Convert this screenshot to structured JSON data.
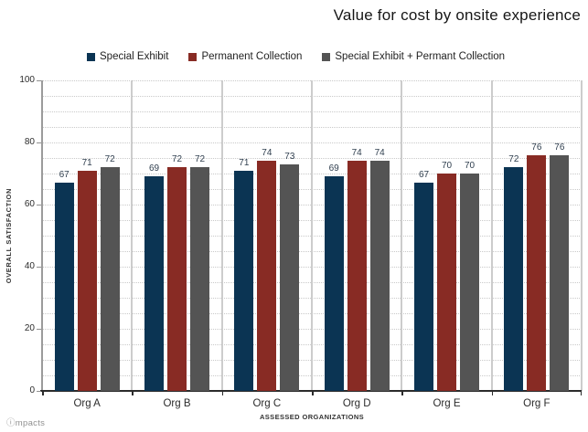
{
  "title": "Value for cost by onsite experience",
  "watermark": "ⓘmpacts",
  "chart_data": {
    "type": "bar",
    "title": "Value for cost by onsite experience",
    "xlabel": "ASSESSED ORGANIZATIONS",
    "ylabel": "OVERALL SATISFACTION",
    "ylim": [
      0,
      100
    ],
    "yticks": [
      0,
      20,
      40,
      60,
      80,
      100
    ],
    "grid_step": 5,
    "grid": "dotted horizontal, vertical separators between categories",
    "legend_position": "top",
    "data_labels": true,
    "categories": [
      "Org A",
      "Org B",
      "Org C",
      "Org D",
      "Org E",
      "Org F"
    ],
    "series": [
      {
        "name": "Special Exhibit",
        "color": "#0b3453",
        "values": [
          67,
          69,
          71,
          69,
          67,
          72
        ]
      },
      {
        "name": "Permanent Collection",
        "color": "#882b24",
        "values": [
          71,
          72,
          74,
          74,
          70,
          76
        ]
      },
      {
        "name": "Special Exhibit + Permant Collection",
        "color": "#545454",
        "values": [
          72,
          72,
          73,
          74,
          70,
          76
        ]
      }
    ]
  }
}
